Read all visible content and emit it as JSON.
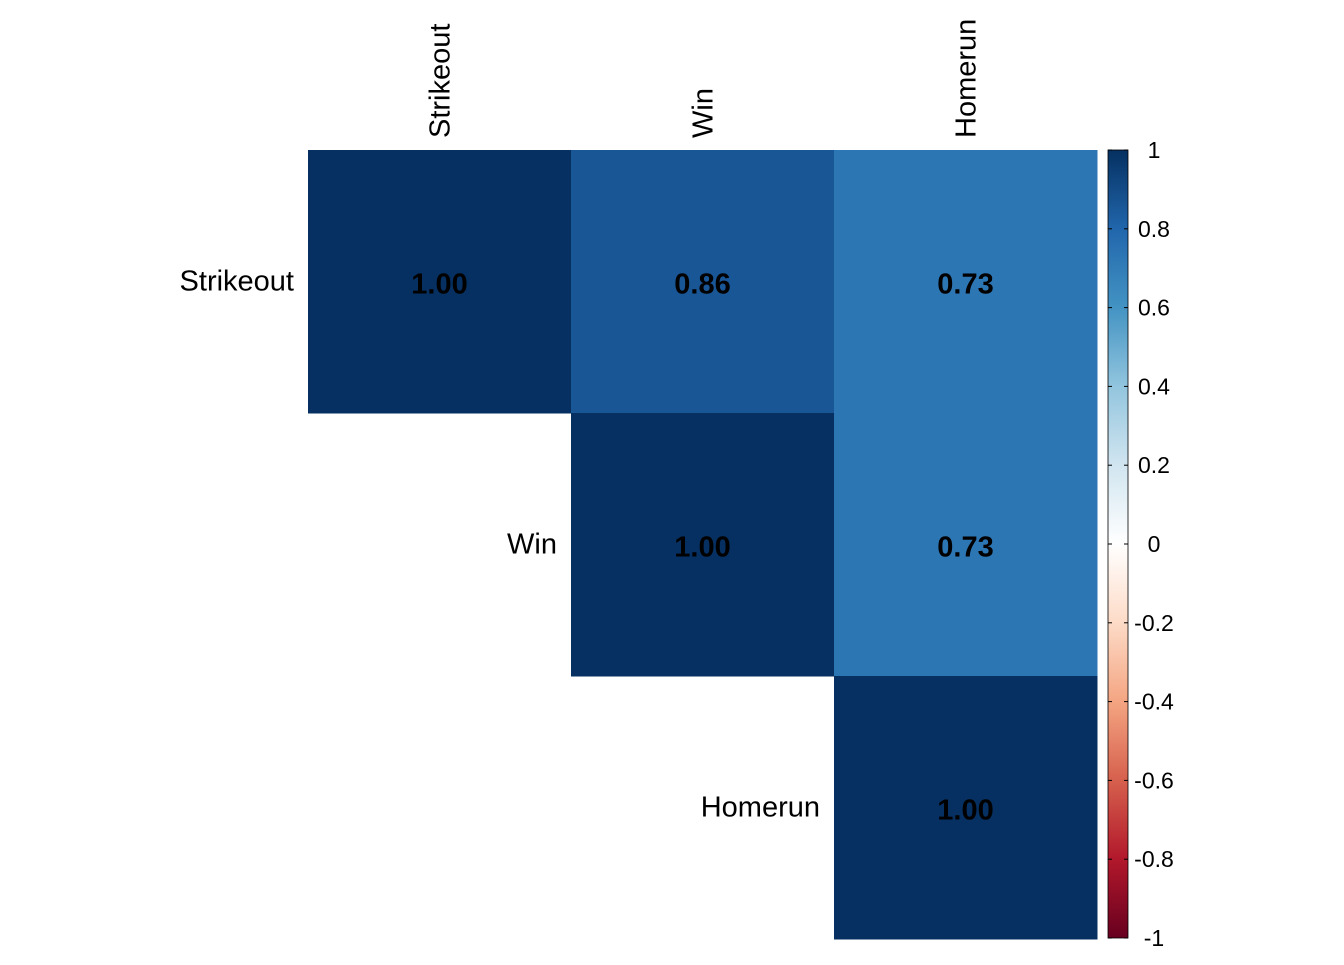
{
  "chart_data": {
    "type": "heatmap",
    "variables": [
      "Strikeout",
      "Win",
      "Homerun"
    ],
    "matrix": [
      [
        1.0,
        0.86,
        0.73
      ],
      [
        null,
        1.0,
        0.73
      ],
      [
        null,
        null,
        1.0
      ]
    ],
    "cell_labels": [
      [
        "1.00",
        "0.86",
        "0.73"
      ],
      [
        "",
        "1.00",
        "0.73"
      ],
      [
        "",
        "",
        "1.00"
      ]
    ],
    "layout": "upper-triangle",
    "colorbar": {
      "range": [
        -1,
        1
      ],
      "ticks": [
        "1",
        "0.8",
        "0.6",
        "0.4",
        "0.2",
        "0",
        "-0.2",
        "-0.4",
        "-0.6",
        "-0.8",
        "-1"
      ],
      "tick_values": [
        1,
        0.8,
        0.6,
        0.4,
        0.2,
        0,
        -0.2,
        -0.4,
        -0.6,
        -0.8,
        -1
      ],
      "colors": [
        "#67001F",
        "#B2182B",
        "#D6604D",
        "#F4A582",
        "#FDDBC7",
        "#FFFFFF",
        "#D1E5F0",
        "#92C5DE",
        "#4393C3",
        "#2166AC",
        "#053061"
      ],
      "placement": "right"
    },
    "grid": false
  }
}
